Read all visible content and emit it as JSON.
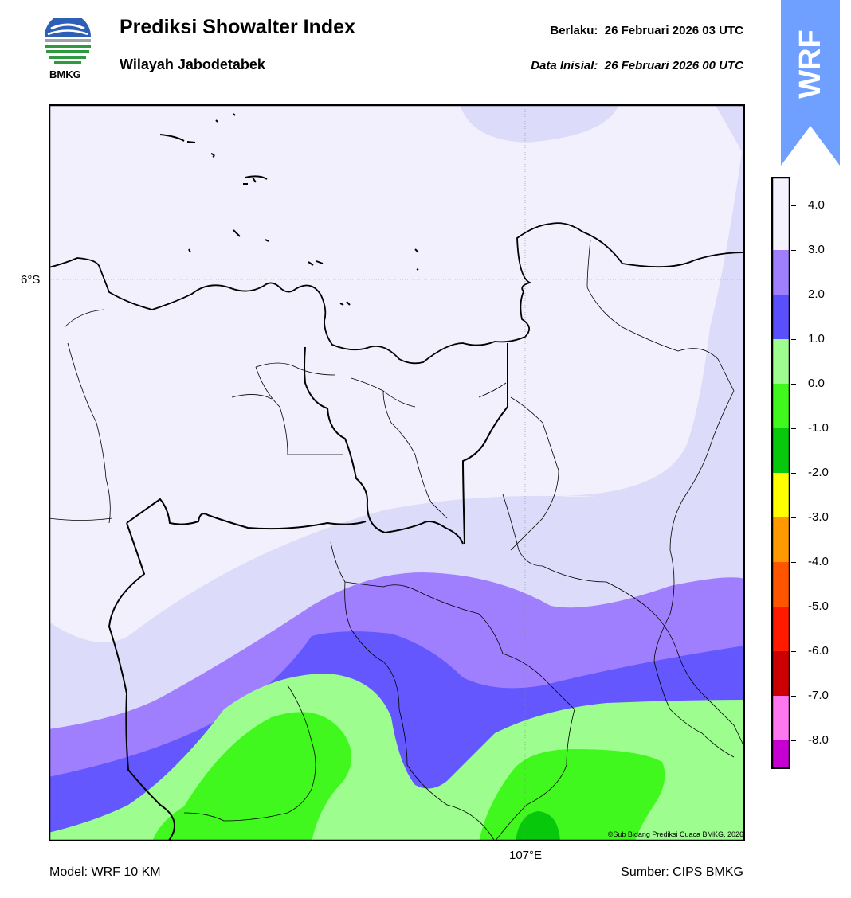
{
  "header": {
    "logo_text": "BMKG",
    "title": "Prediksi Showalter Index",
    "subtitle": "Wilayah Jabodetabek",
    "valid_label": "Berlaku:",
    "valid_time": "26 Februari 2026 03 UTC",
    "init_label": "Data Inisial:",
    "init_time": "26 Februari 2026 00 UTC"
  },
  "badge": {
    "text": "WRF",
    "color": "#6f9fff"
  },
  "map": {
    "lat_label": "6°S",
    "lon_label": "107°E",
    "copyright": "©Sub Bidang Prediksi Cuaca BMKG, 2026",
    "colors": {
      "gt4": "#f2f0fd",
      "3to4": "#dcdcfa",
      "2to3": "#a07ffe",
      "1to2": "#6557fe",
      "0to1": "#9dfd8e",
      "m1to0": "#40f81d",
      "m2tom1": "#08c80c"
    }
  },
  "colorbar": {
    "ticks": [
      "4.0",
      "3.0",
      "2.0",
      "1.0",
      "0.0",
      "-1.0",
      "-2.0",
      "-3.0",
      "-4.0",
      "-5.0",
      "-6.0",
      "-7.0",
      "-8.0"
    ],
    "colors": [
      "#f4f2fd",
      "#a07ffe",
      "#5a4ffc",
      "#9dfd8e",
      "#40f81d",
      "#08c80c",
      "#ffff00",
      "#ff9900",
      "#ff5500",
      "#ff1a00",
      "#cc0000",
      "#ff77ee",
      "#c600d0",
      "#5a1f6e"
    ]
  },
  "footer": {
    "model": "Model: WRF 10 KM",
    "source": "Sumber: CIPS BMKG"
  }
}
